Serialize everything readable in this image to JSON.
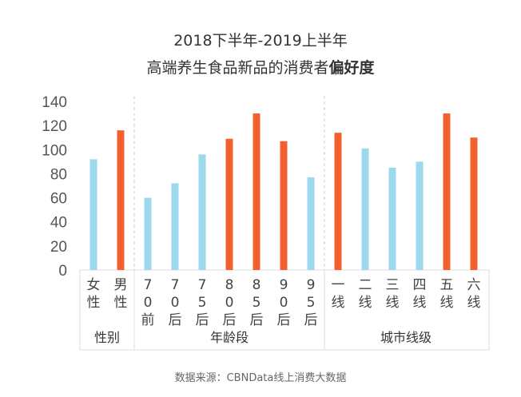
{
  "title_line1": "2018下半年-2019上半年",
  "title_line2_prefix": "高端养生食品新品的消费者",
  "title_line2_bold": "偏好度",
  "source": "数据来源：CBNData线上消费大数据",
  "watermark": "CBNData",
  "colors": {
    "low": "#9dd8ec",
    "high": "#f4602d"
  },
  "chart_data": {
    "type": "bar",
    "title": "2018下半年-2019上半年 高端养生食品新品的消费者偏好度",
    "ylim": [
      0,
      140
    ],
    "yticks": [
      "0",
      "20",
      "40",
      "60",
      "80",
      "100",
      "120",
      "140"
    ],
    "groups": [
      {
        "name": "性别",
        "categories": [
          "女性",
          "男性"
        ],
        "values": [
          92,
          116
        ],
        "highlight": [
          false,
          true
        ]
      },
      {
        "name": "年龄段",
        "categories": [
          "70前",
          "70后",
          "75后",
          "80后",
          "85后",
          "90后",
          "95后"
        ],
        "values": [
          60,
          72,
          96,
          109,
          130,
          107,
          77
        ],
        "highlight": [
          false,
          false,
          false,
          true,
          true,
          true,
          false
        ]
      },
      {
        "name": "城市线级",
        "categories": [
          "一线",
          "二线",
          "三线",
          "四线",
          "五线",
          "六线"
        ],
        "values": [
          114,
          101,
          85,
          90,
          130,
          110
        ],
        "highlight": [
          true,
          false,
          false,
          false,
          true,
          true
        ]
      }
    ]
  }
}
